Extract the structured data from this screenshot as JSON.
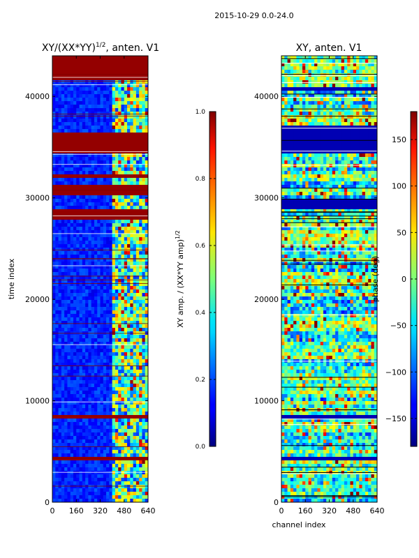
{
  "figure_title": "2015-10-29 0.0-24.0",
  "chart_data": [
    {
      "type": "heatmap",
      "title": "XY/(XX*YY)^(1/2), anten. V1",
      "title_main": "XY/(XX*YY)",
      "title_sup": "1/2",
      "title_tail": ", anten. V1",
      "xlabel": "",
      "ylabel": "time index",
      "xlim": [
        0,
        640
      ],
      "ylim": [
        0,
        44000
      ],
      "xticks": [
        0,
        160,
        320,
        480,
        640
      ],
      "yticks": [
        0,
        10000,
        20000,
        30000,
        40000
      ],
      "colormap": "jet",
      "colorbar": {
        "label": "XY amp. / (XX*YY amp)^(1/2)",
        "label_main": "XY amp. / (XX*YY amp)",
        "label_sup": "1/2",
        "range": [
          0.0,
          1.0
        ],
        "ticks": [
          "0.0",
          "0.2",
          "0.4",
          "0.6",
          "0.8",
          "1.0"
        ]
      }
    },
    {
      "type": "heatmap",
      "title": "XY, anten. V1",
      "xlabel": "channel index",
      "ylabel": "",
      "xlim": [
        0,
        640
      ],
      "ylim": [
        0,
        44000
      ],
      "xticks": [
        0,
        160,
        320,
        480,
        640
      ],
      "yticks": [
        0,
        10000,
        20000,
        30000,
        40000
      ],
      "colormap": "jet",
      "colorbar": {
        "label": "phase (deg)",
        "range": [
          -180,
          180
        ],
        "ticks": [
          "150",
          "100",
          "50",
          "0",
          "−50",
          "−100",
          "−150"
        ]
      }
    }
  ]
}
